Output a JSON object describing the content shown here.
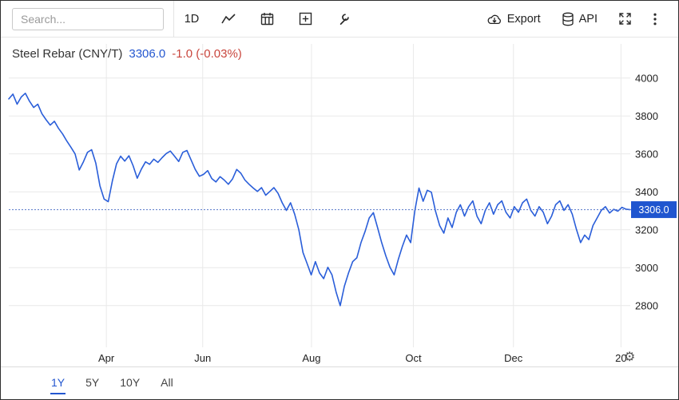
{
  "toolbar": {
    "search_placeholder": "Search...",
    "interval_label": "1D",
    "export_label": "Export",
    "api_label": "API"
  },
  "header": {
    "title": "Steel Rebar (CNY/T)",
    "value": "3306.0",
    "change": "-1.0 (-0.03%)"
  },
  "range_selector": {
    "options": [
      {
        "label": "1Y",
        "active": true
      },
      {
        "label": "5Y",
        "active": false
      },
      {
        "label": "10Y",
        "active": false
      },
      {
        "label": "All",
        "active": false
      }
    ]
  },
  "colors": {
    "accent_blue": "#2457d0",
    "line_blue": "#2a5ed9",
    "badge_bg": "#1f55cf",
    "change_red": "#c9463d",
    "grid": "#e9e9e9"
  },
  "chart_data": {
    "type": "line",
    "title": "Steel Rebar (CNY/T)",
    "ylabel": "",
    "xlabel": "",
    "legend": "none",
    "grid": true,
    "last_value": 3306.0,
    "last_label": "3306.0",
    "change_label": "-1.0 (-0.03%)",
    "y_ticks": [
      4000,
      3800,
      3600,
      3400,
      3200,
      3000,
      2800
    ],
    "y_render_range": [
      2580,
      4180
    ],
    "x_ticks": [
      {
        "label": "Apr",
        "f": 0.157
      },
      {
        "label": "Jun",
        "f": 0.312
      },
      {
        "label": "Aug",
        "f": 0.487
      },
      {
        "label": "Oct",
        "f": 0.651
      },
      {
        "label": "Dec",
        "f": 0.812
      },
      {
        "label": "20",
        "f": 0.985
      }
    ],
    "series": [
      {
        "name": "Steel Rebar (CNY/T)",
        "color": "#2a5ed9",
        "values": [
          3890,
          3915,
          3862,
          3900,
          3920,
          3878,
          3845,
          3862,
          3812,
          3780,
          3752,
          3772,
          3735,
          3705,
          3668,
          3635,
          3600,
          3515,
          3558,
          3608,
          3622,
          3552,
          3432,
          3362,
          3348,
          3458,
          3548,
          3588,
          3562,
          3590,
          3538,
          3472,
          3520,
          3558,
          3545,
          3572,
          3555,
          3580,
          3602,
          3615,
          3588,
          3560,
          3608,
          3618,
          3568,
          3518,
          3482,
          3492,
          3512,
          3470,
          3452,
          3480,
          3462,
          3440,
          3468,
          3518,
          3498,
          3462,
          3440,
          3420,
          3402,
          3422,
          3382,
          3402,
          3422,
          3392,
          3342,
          3302,
          3342,
          3282,
          3200,
          3080,
          3022,
          2962,
          3032,
          2972,
          2942,
          3002,
          2962,
          2872,
          2800,
          2902,
          2972,
          3032,
          3052,
          3132,
          3192,
          3262,
          3290,
          3212,
          3132,
          3062,
          3002,
          2962,
          3042,
          3112,
          3172,
          3132,
          3300,
          3420,
          3350,
          3408,
          3398,
          3298,
          3222,
          3182,
          3262,
          3212,
          3292,
          3332,
          3272,
          3322,
          3352,
          3272,
          3232,
          3302,
          3342,
          3282,
          3332,
          3352,
          3292,
          3262,
          3322,
          3292,
          3342,
          3362,
          3302,
          3272,
          3322,
          3292,
          3232,
          3272,
          3332,
          3352,
          3302,
          3332,
          3282,
          3202,
          3132,
          3172,
          3148,
          3222,
          3262,
          3302,
          3322,
          3288,
          3308,
          3298,
          3318,
          3308,
          3306
        ]
      }
    ]
  }
}
